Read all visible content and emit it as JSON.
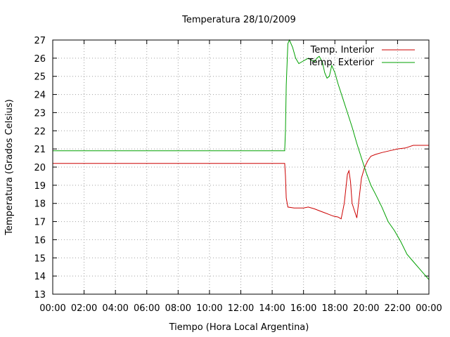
{
  "chart_data": {
    "type": "line",
    "title": "Temperatura 28/10/2009",
    "xlabel": "Tiempo (Hora Local Argentina)",
    "ylabel": "Temperatura (Grados Celsius)",
    "xlim": [
      0,
      24
    ],
    "ylim": [
      13,
      27
    ],
    "x_ticks": [
      "00:00",
      "02:00",
      "04:00",
      "06:00",
      "08:00",
      "10:00",
      "12:00",
      "14:00",
      "16:00",
      "18:00",
      "20:00",
      "22:00",
      "00:00"
    ],
    "y_ticks": [
      "13",
      "14",
      "15",
      "16",
      "17",
      "18",
      "19",
      "20",
      "21",
      "22",
      "23",
      "24",
      "25",
      "26",
      "27"
    ],
    "grid": true,
    "legend_position": "top-right",
    "series": [
      {
        "name": "Temp. Interior",
        "color": "#cc0000",
        "x": [
          0,
          14.8,
          14.85,
          14.9,
          15.0,
          15.4,
          16.0,
          16.3,
          16.7,
          17.0,
          17.3,
          17.6,
          17.9,
          18.2,
          18.4,
          18.6,
          18.8,
          18.9,
          19.0,
          19.1,
          19.25,
          19.4,
          19.55,
          19.7,
          19.9,
          20.1,
          20.3,
          20.6,
          21.0,
          21.5,
          22.0,
          22.5,
          23.0,
          24.0
        ],
        "y": [
          20.2,
          20.2,
          19.5,
          18.3,
          17.8,
          17.75,
          17.75,
          17.8,
          17.7,
          17.6,
          17.5,
          17.4,
          17.3,
          17.25,
          17.15,
          18.0,
          19.6,
          19.8,
          19.2,
          18.0,
          17.6,
          17.2,
          18.3,
          19.4,
          20.0,
          20.35,
          20.6,
          20.7,
          20.8,
          20.9,
          21.0,
          21.05,
          21.2,
          21.2
        ]
      },
      {
        "name": "Temp. Exterior",
        "color": "#00a000",
        "x": [
          0,
          14.8,
          14.85,
          14.9,
          15.0,
          15.1,
          15.3,
          15.5,
          15.7,
          15.9,
          16.1,
          16.3,
          16.5,
          16.7,
          16.85,
          17.0,
          17.2,
          17.35,
          17.5,
          17.65,
          17.8,
          18.0,
          18.2,
          18.5,
          18.8,
          19.1,
          19.4,
          19.7,
          20.0,
          20.3,
          20.6,
          21.0,
          21.4,
          21.8,
          22.2,
          22.6,
          23.0,
          23.4,
          23.8,
          24.0
        ],
        "y": [
          20.9,
          20.9,
          22.0,
          24.5,
          26.8,
          27.0,
          26.6,
          26.0,
          25.7,
          25.8,
          25.9,
          26.0,
          25.9,
          25.8,
          26.0,
          26.1,
          25.8,
          25.2,
          24.9,
          25.0,
          25.6,
          25.2,
          24.6,
          23.8,
          23.0,
          22.2,
          21.3,
          20.5,
          19.7,
          19.0,
          18.5,
          17.8,
          17.0,
          16.5,
          15.9,
          15.2,
          14.8,
          14.4,
          14.0,
          13.8
        ]
      }
    ]
  }
}
